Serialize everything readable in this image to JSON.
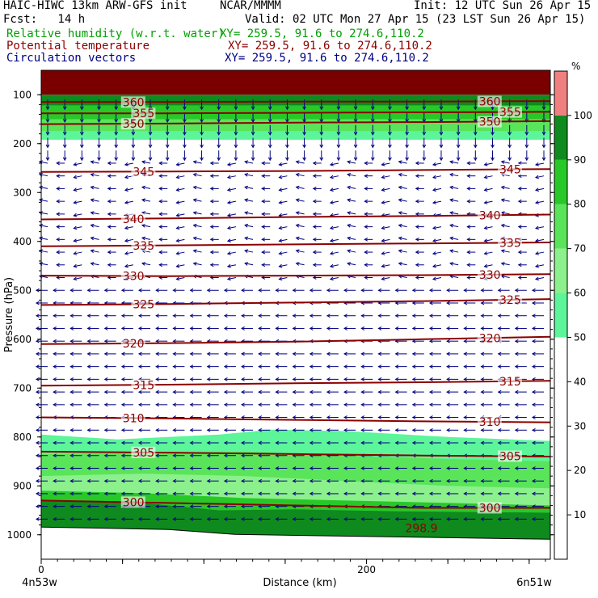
{
  "header": {
    "model": "HAIC-HIWC 13km ARW-GFS init",
    "center": "NCAR/MMMM",
    "init": "Init: 12 UTC Sun 26 Apr 15",
    "fcst": "Fcst:   14 h",
    "valid": "Valid: 02 UTC Mon 27 Apr 15 (23 LST Sun 26 Apr 15)",
    "rh_label": "Relative humidity (w.r.t. water)",
    "rh_xy": "XY= 259.5, 91.6 to 274.6,110.2",
    "theta_label": "Potential temperature",
    "theta_xy": "XY= 259.5, 91.6 to 274.6,110.2",
    "vec_label": "Circulation vectors",
    "vec_xy": "XY= 259.5, 91.6 to 274.6,110.2"
  },
  "chart_data": {
    "type": "cross-section",
    "x_axis": {
      "label": "Distance (km)",
      "ticks": [
        "0",
        "200"
      ],
      "range": [
        0,
        313
      ],
      "left_endpoint": "4n53w",
      "right_endpoint": "6n51w"
    },
    "y_axis": {
      "label": "Pressure (hPa)",
      "ticks": [
        "100",
        "200",
        "300",
        "400",
        "500",
        "600",
        "700",
        "800",
        "900",
        "1000"
      ],
      "range": [
        50,
        1050
      ]
    },
    "colorbar": {
      "unit": "%",
      "labels": [
        "10",
        "20",
        "30",
        "40",
        "50",
        "60",
        "70",
        "80",
        "90",
        "100"
      ],
      "levels": [
        {
          "from": 0,
          "to": 50,
          "color": "#ffffff"
        },
        {
          "from": 50,
          "to": 60,
          "color": "#5cf59a"
        },
        {
          "from": 60,
          "to": 70,
          "color": "#8cf08c"
        },
        {
          "from": 70,
          "to": 80,
          "color": "#5ae45a"
        },
        {
          "from": 80,
          "to": 90,
          "color": "#28c828"
        },
        {
          "from": 90,
          "to": 100,
          "color": "#0f8a1e"
        },
        {
          "from": 100,
          "to": 110,
          "color": "#f08080"
        }
      ]
    },
    "theta_contours": [
      {
        "label": "300",
        "p": [
          930,
          935,
          940,
          945,
          945
        ]
      },
      {
        "label": "305",
        "p": [
          830,
          832,
          835,
          838,
          840
        ]
      },
      {
        "label": "310",
        "p": [
          760,
          762,
          765,
          768,
          770
        ]
      },
      {
        "label": "315",
        "p": [
          695,
          693,
          690,
          688,
          685
        ]
      },
      {
        "label": "320",
        "p": [
          610,
          608,
          605,
          600,
          595
        ]
      },
      {
        "label": "325",
        "p": [
          530,
          528,
          525,
          522,
          518
        ]
      },
      {
        "label": "330",
        "p": [
          470,
          471,
          470,
          469,
          467
        ]
      },
      {
        "label": "335",
        "p": [
          410,
          408,
          406,
          404,
          402
        ]
      },
      {
        "label": "340",
        "p": [
          355,
          353,
          350,
          348,
          345
        ]
      },
      {
        "label": "345",
        "p": [
          258,
          257,
          256,
          254,
          252
        ]
      },
      {
        "label": "350",
        "p": [
          160,
          159,
          157,
          156,
          154
        ]
      },
      {
        "label": "355",
        "p": [
          138,
          138,
          137,
          136,
          135
        ]
      },
      {
        "label": "360",
        "p": [
          115,
          115,
          114,
          114,
          113
        ]
      }
    ],
    "annotations": [
      "298.9"
    ],
    "wind": {
      "upper_direction": "down",
      "middle_direction": "west",
      "lower_direction": "west"
    }
  }
}
